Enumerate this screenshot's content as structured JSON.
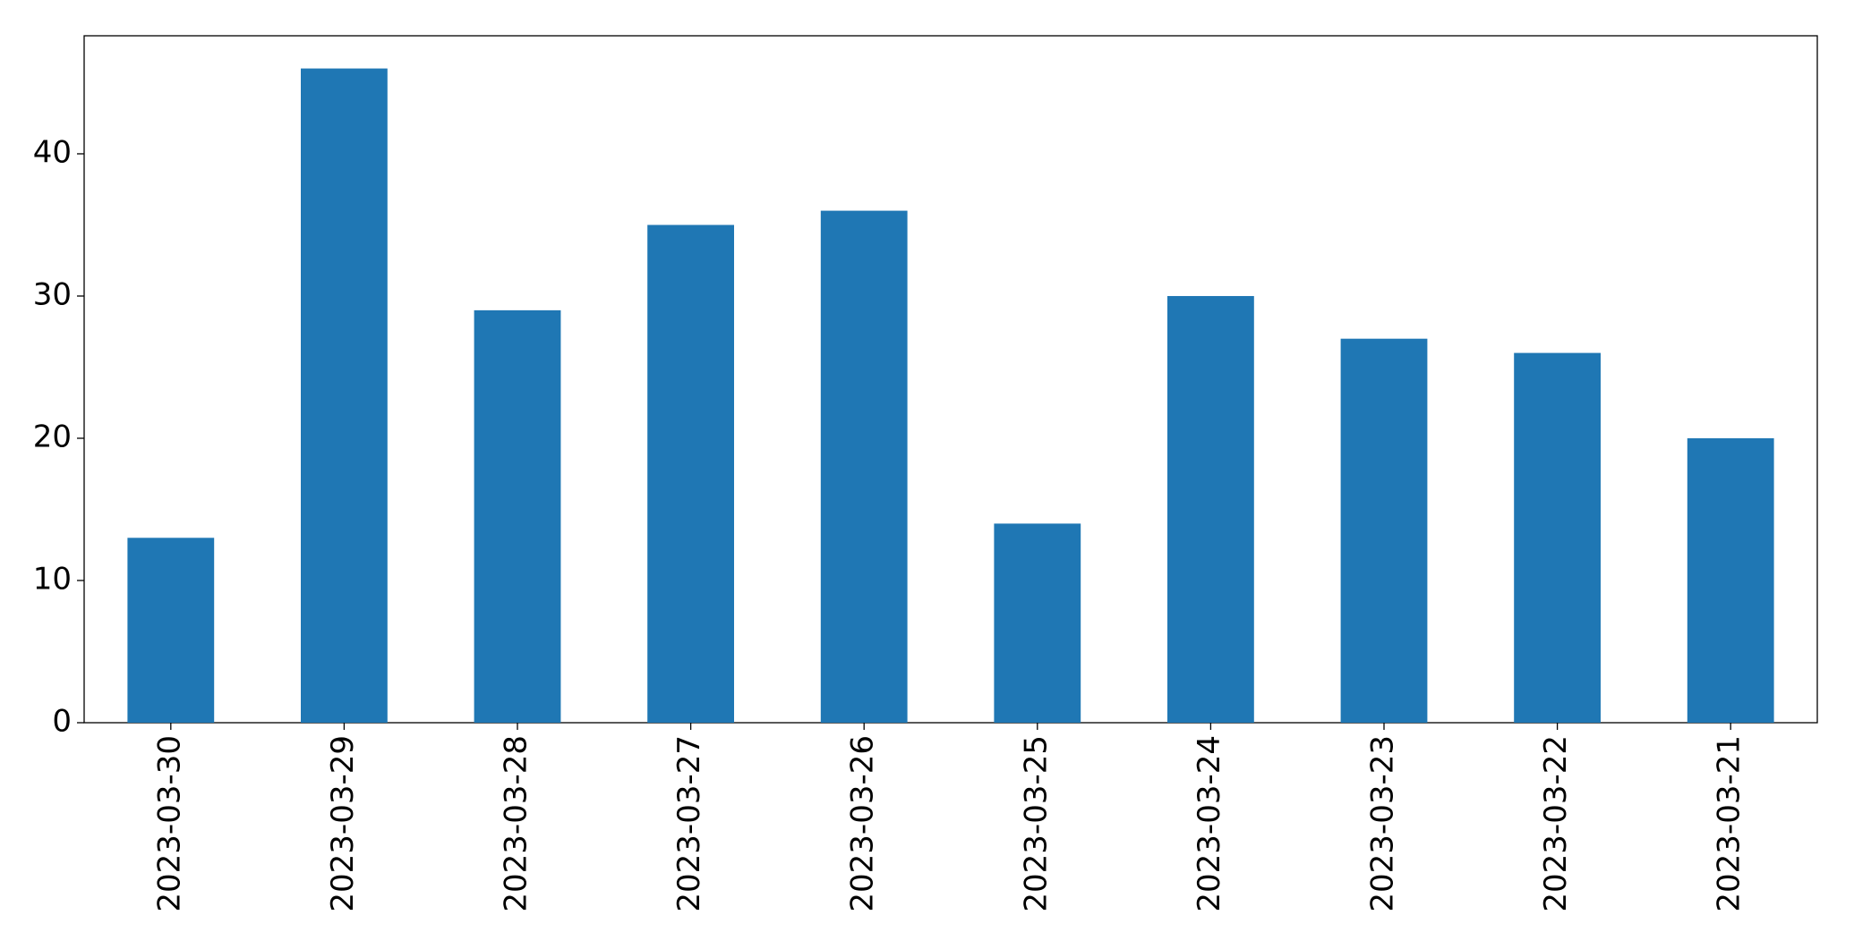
{
  "chart_data": {
    "type": "bar",
    "categories": [
      "2023-03-30",
      "2023-03-29",
      "2023-03-28",
      "2023-03-27",
      "2023-03-26",
      "2023-03-25",
      "2023-03-24",
      "2023-03-23",
      "2023-03-22",
      "2023-03-21"
    ],
    "values": [
      13,
      46,
      29,
      35,
      36,
      14,
      30,
      27,
      26,
      20
    ],
    "color": "#1f77b4",
    "ylim": [
      0,
      48.3
    ],
    "yticks": [
      0,
      10,
      20,
      30,
      40
    ],
    "grid": false
  }
}
